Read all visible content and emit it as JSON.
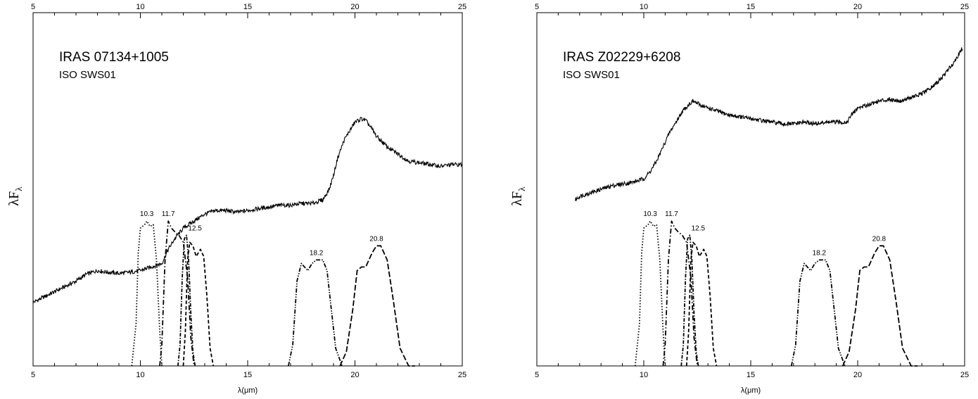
{
  "chart_data": [
    {
      "type": "line",
      "title": "IRAS 07134+1005",
      "subtitle": "ISO SWS01",
      "xlabel": "λ(μm)",
      "ylabel": "λF",
      "ylabel_sub": "λ",
      "xlim": [
        5,
        25
      ],
      "xticks": [
        5,
        10,
        15,
        20,
        25
      ],
      "grid": false,
      "spectrum": {
        "x": [
          5,
          5.5,
          6,
          6.5,
          7,
          7.5,
          8,
          8.5,
          9,
          9.5,
          10,
          10.5,
          11,
          11.3,
          11.6,
          12,
          12.5,
          13,
          13.5,
          14,
          14.5,
          15,
          15.5,
          16,
          16.5,
          17,
          17.5,
          18,
          18.5,
          18.8,
          19,
          19.2,
          19.5,
          19.8,
          20,
          20.3,
          20.5,
          20.8,
          21,
          21.5,
          22,
          22.5,
          23,
          23.5,
          24,
          24.5,
          25
        ],
        "y": [
          0.18,
          0.195,
          0.21,
          0.225,
          0.24,
          0.26,
          0.27,
          0.265,
          0.262,
          0.265,
          0.27,
          0.28,
          0.29,
          0.33,
          0.36,
          0.39,
          0.41,
          0.43,
          0.44,
          0.44,
          0.435,
          0.44,
          0.445,
          0.45,
          0.455,
          0.455,
          0.46,
          0.46,
          0.47,
          0.5,
          0.54,
          0.59,
          0.64,
          0.67,
          0.69,
          0.7,
          0.695,
          0.67,
          0.65,
          0.62,
          0.6,
          0.58,
          0.575,
          0.57,
          0.565,
          0.57,
          0.57
        ]
      },
      "filters": [
        {
          "label": "10.3",
          "style": "dotted",
          "x": [
            9.6,
            9.8,
            9.9,
            10.0,
            10.2,
            10.3,
            10.45,
            10.6,
            10.75,
            10.9,
            11.0
          ],
          "y": [
            0.0,
            0.12,
            0.32,
            0.39,
            0.4,
            0.41,
            0.395,
            0.4,
            0.3,
            0.1,
            0.0
          ]
        },
        {
          "label": "11.7",
          "style": "dashdot",
          "x": [
            10.9,
            11.0,
            11.15,
            11.3,
            11.45,
            11.6,
            11.8,
            12.0,
            12.2,
            12.35,
            12.5
          ],
          "y": [
            0.0,
            0.06,
            0.3,
            0.41,
            0.39,
            0.38,
            0.37,
            0.35,
            0.25,
            0.08,
            0.0
          ]
        },
        {
          "label": "12.5",
          "style": "dashdot2",
          "x": [
            11.75,
            11.85,
            11.95,
            12.05,
            12.15,
            12.25,
            12.35,
            12.45,
            12.55
          ],
          "y": [
            0.0,
            0.06,
            0.25,
            0.36,
            0.37,
            0.3,
            0.15,
            0.04,
            0.0
          ]
        },
        {
          "label": "",
          "style": "dashed",
          "x": [
            12.0,
            12.1,
            12.2,
            12.3,
            12.45,
            12.6,
            12.8,
            12.95,
            13.1,
            13.25,
            13.4
          ],
          "y": [
            0.0,
            0.1,
            0.3,
            0.35,
            0.34,
            0.31,
            0.33,
            0.31,
            0.2,
            0.05,
            0.0
          ]
        },
        {
          "label": "18.2",
          "style": "dashdotdot",
          "x": [
            16.9,
            17.1,
            17.3,
            17.5,
            17.8,
            18.0,
            18.2,
            18.5,
            18.7,
            18.9,
            19.1,
            19.4
          ],
          "y": [
            0.0,
            0.06,
            0.24,
            0.29,
            0.27,
            0.29,
            0.3,
            0.3,
            0.27,
            0.16,
            0.05,
            0.0
          ]
        },
        {
          "label": "20.8",
          "style": "longdash",
          "x": [
            19.3,
            19.6,
            19.9,
            20.1,
            20.3,
            20.5,
            20.8,
            21.0,
            21.2,
            21.5,
            21.8,
            22.1,
            22.5,
            22.8
          ],
          "y": [
            0.0,
            0.04,
            0.16,
            0.27,
            0.28,
            0.28,
            0.32,
            0.34,
            0.34,
            0.3,
            0.18,
            0.05,
            0.0,
            0.0
          ]
        }
      ]
    },
    {
      "type": "line",
      "title": "IRAS Z02229+6208",
      "subtitle": "ISO SWS01",
      "xlabel": "λ(μm)",
      "ylabel": "λF",
      "ylabel_sub": "λ",
      "xlim": [
        5,
        25
      ],
      "xticks": [
        5,
        10,
        15,
        20,
        25
      ],
      "grid": false,
      "spectrum": {
        "x": [
          6.8,
          7.0,
          7.5,
          8.0,
          8.5,
          9.0,
          9.5,
          10.0,
          10.3,
          10.6,
          10.9,
          11.2,
          11.5,
          11.8,
          12.1,
          12.3,
          12.6,
          13.0,
          13.5,
          14.0,
          14.5,
          15.0,
          15.5,
          16.0,
          16.5,
          17.0,
          17.5,
          18.0,
          18.5,
          19.0,
          19.5,
          19.7,
          20.0,
          20.5,
          21.0,
          21.5,
          22.0,
          22.5,
          23.0,
          23.5,
          24.0,
          24.5,
          24.9
        ],
        "y": [
          0.47,
          0.48,
          0.49,
          0.5,
          0.51,
          0.515,
          0.52,
          0.53,
          0.55,
          0.58,
          0.62,
          0.66,
          0.69,
          0.72,
          0.74,
          0.75,
          0.74,
          0.73,
          0.72,
          0.71,
          0.705,
          0.7,
          0.695,
          0.69,
          0.685,
          0.685,
          0.69,
          0.685,
          0.69,
          0.69,
          0.69,
          0.71,
          0.73,
          0.74,
          0.75,
          0.755,
          0.75,
          0.76,
          0.77,
          0.79,
          0.82,
          0.86,
          0.9
        ]
      },
      "filters": [
        {
          "label": "10.3",
          "style": "dotted",
          "x": [
            9.6,
            9.8,
            9.9,
            10.0,
            10.2,
            10.3,
            10.45,
            10.6,
            10.75,
            10.9,
            11.0
          ],
          "y": [
            0.0,
            0.12,
            0.32,
            0.39,
            0.4,
            0.41,
            0.395,
            0.4,
            0.3,
            0.1,
            0.0
          ]
        },
        {
          "label": "11.7",
          "style": "dashdot",
          "x": [
            10.9,
            11.0,
            11.15,
            11.3,
            11.45,
            11.6,
            11.8,
            12.0,
            12.2,
            12.35,
            12.5
          ],
          "y": [
            0.0,
            0.06,
            0.3,
            0.41,
            0.39,
            0.38,
            0.37,
            0.35,
            0.25,
            0.08,
            0.0
          ]
        },
        {
          "label": "12.5",
          "style": "dashdot2",
          "x": [
            11.75,
            11.85,
            11.95,
            12.05,
            12.15,
            12.25,
            12.35,
            12.45,
            12.55
          ],
          "y": [
            0.0,
            0.06,
            0.25,
            0.36,
            0.37,
            0.3,
            0.15,
            0.04,
            0.0
          ]
        },
        {
          "label": "",
          "style": "dashed",
          "x": [
            12.0,
            12.1,
            12.2,
            12.3,
            12.45,
            12.6,
            12.8,
            12.95,
            13.1,
            13.25,
            13.4
          ],
          "y": [
            0.0,
            0.1,
            0.3,
            0.35,
            0.34,
            0.31,
            0.33,
            0.31,
            0.2,
            0.05,
            0.0
          ]
        },
        {
          "label": "18.2",
          "style": "dashdotdot",
          "x": [
            16.9,
            17.1,
            17.3,
            17.5,
            17.8,
            18.0,
            18.2,
            18.5,
            18.7,
            18.9,
            19.1,
            19.4
          ],
          "y": [
            0.0,
            0.06,
            0.24,
            0.29,
            0.27,
            0.29,
            0.3,
            0.3,
            0.27,
            0.16,
            0.05,
            0.0
          ]
        },
        {
          "label": "20.8",
          "style": "longdash",
          "x": [
            19.3,
            19.6,
            19.9,
            20.1,
            20.3,
            20.5,
            20.8,
            21.0,
            21.2,
            21.5,
            21.8,
            22.1,
            22.5,
            22.8
          ],
          "y": [
            0.0,
            0.04,
            0.16,
            0.27,
            0.28,
            0.28,
            0.32,
            0.34,
            0.34,
            0.3,
            0.18,
            0.05,
            0.0,
            0.0
          ]
        }
      ]
    }
  ]
}
